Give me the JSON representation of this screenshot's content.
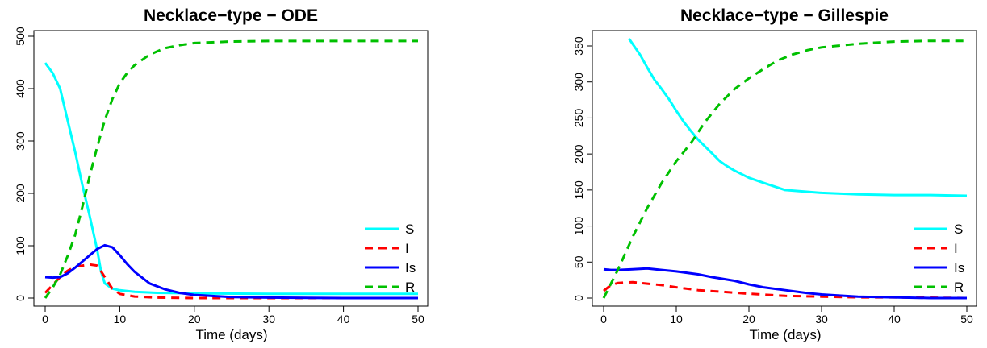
{
  "chart_data": [
    {
      "type": "line",
      "title": "Necklace−type − ODE",
      "xlabel": "Time (days)",
      "ylabel": "",
      "xlim": [
        0,
        50
      ],
      "ylim": [
        0,
        500
      ],
      "xticks": [
        0,
        10,
        20,
        30,
        40,
        50
      ],
      "yticks": [
        0,
        100,
        200,
        300,
        400,
        500
      ],
      "grid": false,
      "legend_position": "bottom-right",
      "series": [
        {
          "name": "S",
          "color": "#00ffff",
          "dash": "solid",
          "points": [
            [
              0,
              449
            ],
            [
              1,
              430
            ],
            [
              2,
              400
            ],
            [
              3,
              340
            ],
            [
              4,
              280
            ],
            [
              5,
              215
            ],
            [
              6,
              155
            ],
            [
              7,
              90
            ],
            [
              7.5,
              50
            ],
            [
              8,
              28
            ],
            [
              9,
              18
            ],
            [
              10,
              15
            ],
            [
              12,
              12
            ],
            [
              15,
              10
            ],
            [
              20,
              9
            ],
            [
              30,
              8
            ],
            [
              40,
              8
            ],
            [
              50,
              8
            ]
          ]
        },
        {
          "name": "I",
          "color": "#ff0000",
          "dash": "dashed",
          "points": [
            [
              0,
              10
            ],
            [
              1,
              25
            ],
            [
              2,
              40
            ],
            [
              3,
              52
            ],
            [
              4,
              60
            ],
            [
              5,
              62
            ],
            [
              6,
              64
            ],
            [
              7,
              62
            ],
            [
              8,
              40
            ],
            [
              9,
              18
            ],
            [
              10,
              8
            ],
            [
              12,
              3
            ],
            [
              15,
              1
            ],
            [
              20,
              0
            ],
            [
              30,
              0
            ],
            [
              40,
              0
            ],
            [
              50,
              0
            ]
          ]
        },
        {
          "name": "Is",
          "color": "#0000ff",
          "dash": "solid",
          "points": [
            [
              0,
              40
            ],
            [
              1,
              39
            ],
            [
              2,
              40
            ],
            [
              3,
              47
            ],
            [
              4,
              58
            ],
            [
              5,
              70
            ],
            [
              6,
              82
            ],
            [
              7,
              94
            ],
            [
              8,
              101
            ],
            [
              9,
              97
            ],
            [
              10,
              82
            ],
            [
              11,
              65
            ],
            [
              12,
              50
            ],
            [
              14,
              28
            ],
            [
              16,
              17
            ],
            [
              18,
              10
            ],
            [
              20,
              6
            ],
            [
              25,
              2
            ],
            [
              30,
              1
            ],
            [
              40,
              0
            ],
            [
              50,
              0
            ]
          ]
        },
        {
          "name": "R",
          "color": "#00c000",
          "dash": "dashed",
          "points": [
            [
              0,
              0
            ],
            [
              1,
              20
            ],
            [
              2,
              45
            ],
            [
              3,
              80
            ],
            [
              4,
              120
            ],
            [
              5,
              175
            ],
            [
              6,
              235
            ],
            [
              7,
              290
            ],
            [
              8,
              340
            ],
            [
              9,
              380
            ],
            [
              10,
              410
            ],
            [
              11,
              430
            ],
            [
              12,
              445
            ],
            [
              14,
              465
            ],
            [
              16,
              477
            ],
            [
              18,
              483
            ],
            [
              20,
              487
            ],
            [
              25,
              490
            ],
            [
              30,
              491
            ],
            [
              40,
              491
            ],
            [
              50,
              491
            ]
          ]
        }
      ]
    },
    {
      "type": "line",
      "title": "Necklace−type − Gillespie",
      "xlabel": "Time (days)",
      "ylabel": "",
      "xlim": [
        0,
        50
      ],
      "ylim": [
        0,
        360
      ],
      "xticks": [
        0,
        10,
        20,
        30,
        40,
        50
      ],
      "yticks": [
        0,
        50,
        100,
        150,
        200,
        250,
        300,
        350
      ],
      "grid": false,
      "legend_position": "bottom-right",
      "series": [
        {
          "name": "S",
          "color": "#00ffff",
          "dash": "solid",
          "points": [
            [
              3.5,
              360
            ],
            [
              5,
              338
            ],
            [
              6,
              320
            ],
            [
              7,
              303
            ],
            [
              8,
              290
            ],
            [
              9,
              276
            ],
            [
              10,
              260
            ],
            [
              11,
              245
            ],
            [
              12,
              232
            ],
            [
              13,
              220
            ],
            [
              14,
              210
            ],
            [
              15,
              200
            ],
            [
              16,
              190
            ],
            [
              17,
              183
            ],
            [
              18,
              177
            ],
            [
              20,
              167
            ],
            [
              22,
              160
            ],
            [
              25,
              150
            ],
            [
              30,
              146
            ],
            [
              35,
              144
            ],
            [
              40,
              143
            ],
            [
              45,
              143
            ],
            [
              50,
              142
            ]
          ]
        },
        {
          "name": "I",
          "color": "#ff0000",
          "dash": "dashed",
          "points": [
            [
              0,
              10
            ],
            [
              1,
              18
            ],
            [
              2,
              21
            ],
            [
              4,
              22
            ],
            [
              5,
              21
            ],
            [
              8,
              18
            ],
            [
              10,
              15
            ],
            [
              13,
              11
            ],
            [
              16,
              9
            ],
            [
              20,
              6
            ],
            [
              25,
              3
            ],
            [
              30,
              2
            ],
            [
              35,
              1
            ],
            [
              40,
              1
            ],
            [
              50,
              0
            ]
          ]
        },
        {
          "name": "Is",
          "color": "#0000ff",
          "dash": "solid",
          "points": [
            [
              0,
              40
            ],
            [
              1,
              39
            ],
            [
              2,
              39
            ],
            [
              4,
              40
            ],
            [
              6,
              41
            ],
            [
              8,
              39
            ],
            [
              10,
              37
            ],
            [
              13,
              33
            ],
            [
              15,
              29
            ],
            [
              18,
              24
            ],
            [
              20,
              19
            ],
            [
              22,
              15
            ],
            [
              25,
              11
            ],
            [
              28,
              7
            ],
            [
              30,
              5
            ],
            [
              35,
              2
            ],
            [
              40,
              1
            ],
            [
              45,
              0
            ],
            [
              50,
              0
            ]
          ]
        },
        {
          "name": "R",
          "color": "#00c000",
          "dash": "dashed",
          "points": [
            [
              0,
              0
            ],
            [
              2,
              40
            ],
            [
              4,
              85
            ],
            [
              6,
              125
            ],
            [
              8,
              160
            ],
            [
              10,
              190
            ],
            [
              12,
              215
            ],
            [
              14,
              245
            ],
            [
              16,
              270
            ],
            [
              18,
              290
            ],
            [
              20,
              305
            ],
            [
              22,
              318
            ],
            [
              24,
              330
            ],
            [
              26,
              338
            ],
            [
              28,
              344
            ],
            [
              30,
              348
            ],
            [
              35,
              353
            ],
            [
              40,
              356
            ],
            [
              45,
              357
            ],
            [
              50,
              357
            ]
          ]
        }
      ]
    }
  ]
}
